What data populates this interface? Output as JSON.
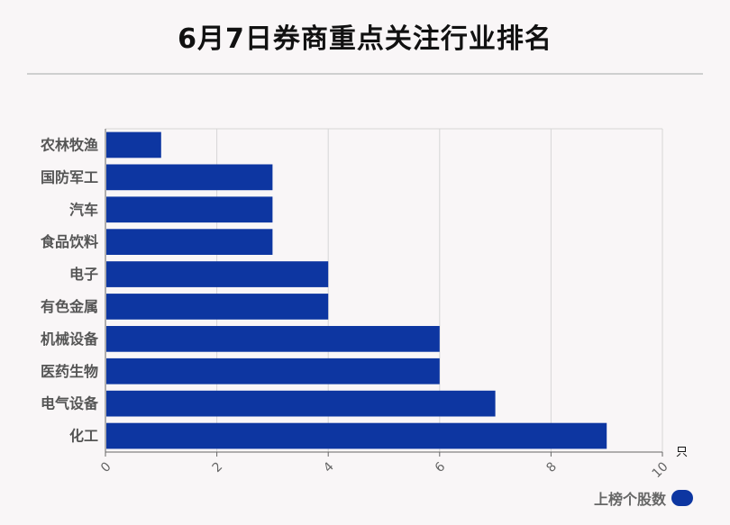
{
  "title": "6月7日券商重点关注行业排名",
  "chart_data": {
    "type": "bar",
    "orientation": "horizontal",
    "categories": [
      "农林牧渔",
      "国防军工",
      "汽车",
      "食品饮料",
      "电子",
      "有色金属",
      "机械设备",
      "医药生物",
      "电气设备",
      "化工"
    ],
    "series": [
      {
        "name": "上榜个股数",
        "values": [
          1,
          3,
          3,
          3,
          4,
          4,
          6,
          6,
          7,
          9
        ]
      }
    ],
    "xlim": [
      0,
      10
    ],
    "xticks": [
      "0",
      "2",
      "4",
      "6",
      "8",
      "10"
    ],
    "x_unit": "只",
    "grid": "vertical",
    "legend_position": "bottom-right",
    "bar_color": "#0d36a1"
  }
}
